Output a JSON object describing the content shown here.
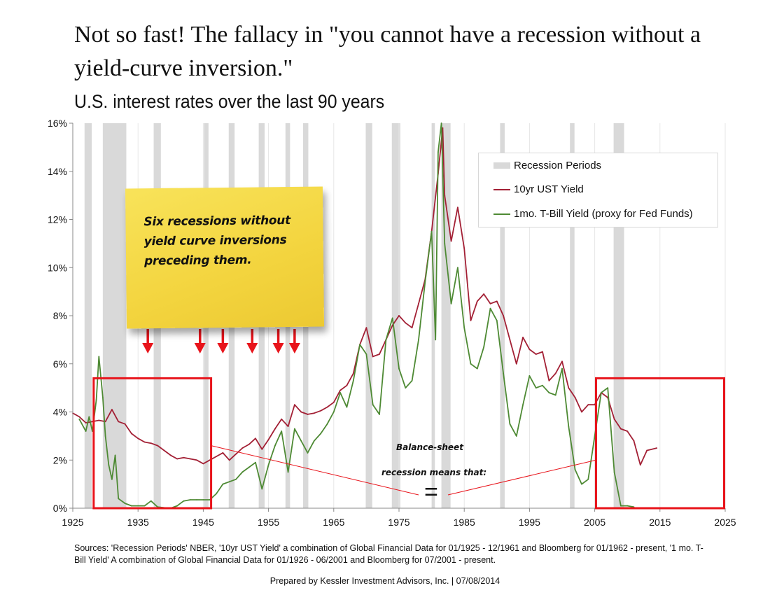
{
  "headline": "Not so fast!  The fallacy in \"you cannot have a recession without a yield-curve inversion.\"",
  "chart_data": {
    "type": "line",
    "title": "U.S. interest rates over the last 90 years",
    "xlim": [
      1925,
      2025
    ],
    "ylim": [
      0,
      16
    ],
    "x_ticks": [
      "1925",
      "1935",
      "1945",
      "1955",
      "1965",
      "1975",
      "1985",
      "1995",
      "2005",
      "2015",
      "2025"
    ],
    "x_tick_values": [
      1925,
      1935,
      1945,
      1955,
      1965,
      1975,
      1985,
      1995,
      2005,
      2015,
      2025
    ],
    "y_ticks": [
      "0%",
      "2%",
      "4%",
      "6%",
      "8%",
      "10%",
      "12%",
      "14%",
      "16%"
    ],
    "y_tick_values": [
      0,
      2,
      4,
      6,
      8,
      10,
      12,
      14,
      16
    ],
    "grid": "vertical",
    "legend_position": "top-right",
    "legend": [
      {
        "label": "Recession Periods",
        "kind": "band",
        "color": "#d9d9d9"
      },
      {
        "label": "10yr UST Yield",
        "kind": "line",
        "color": "#a32035"
      },
      {
        "label": "1mo. T-Bill Yield (proxy for Fed Funds)",
        "kind": "line",
        "color": "#4e8a34"
      }
    ],
    "recessions": [
      [
        1926.8,
        1927.9
      ],
      [
        1929.6,
        1933.2
      ],
      [
        1937.4,
        1938.5
      ],
      [
        1945.1,
        1945.8
      ],
      [
        1948.9,
        1949.8
      ],
      [
        1953.5,
        1954.4
      ],
      [
        1957.6,
        1958.3
      ],
      [
        1960.3,
        1961.1
      ],
      [
        1969.9,
        1970.9
      ],
      [
        1973.9,
        1975.2
      ],
      [
        1980.0,
        1980.5
      ],
      [
        1981.5,
        1982.9
      ],
      [
        1990.5,
        1991.2
      ],
      [
        2001.2,
        2001.9
      ],
      [
        2007.9,
        2009.5
      ]
    ],
    "series": [
      {
        "name": "10yr UST Yield",
        "color": "#a32035",
        "x": [
          1925,
          1926,
          1927,
          1928,
          1929,
          1930,
          1931,
          1932,
          1933,
          1934,
          1935,
          1936,
          1937,
          1938,
          1939,
          1940,
          1941,
          1942,
          1943,
          1944,
          1945,
          1946,
          1947,
          1948,
          1949,
          1950,
          1951,
          1952,
          1953,
          1954,
          1955,
          1956,
          1957,
          1958,
          1959,
          1960,
          1961,
          1962,
          1963,
          1964,
          1965,
          1966,
          1967,
          1968,
          1969,
          1970,
          1971,
          1972,
          1973,
          1974,
          1975,
          1976,
          1977,
          1978,
          1979,
          1980,
          1981,
          1981.7,
          1982,
          1983,
          1984,
          1985,
          1986,
          1987,
          1988,
          1989,
          1990,
          1991,
          1992,
          1993,
          1994,
          1995,
          1996,
          1997,
          1998,
          1999,
          2000,
          2001,
          2002,
          2003,
          2004,
          2005,
          2006,
          2007,
          2008,
          2009,
          2010,
          2011,
          2012,
          2013,
          2014.5
        ],
        "values": [
          3.95,
          3.8,
          3.55,
          3.6,
          3.65,
          3.6,
          4.1,
          3.6,
          3.5,
          3.1,
          2.9,
          2.75,
          2.7,
          2.6,
          2.4,
          2.2,
          2.05,
          2.1,
          2.05,
          2.0,
          1.85,
          2.0,
          2.15,
          2.3,
          2.0,
          2.25,
          2.5,
          2.65,
          2.9,
          2.45,
          2.85,
          3.3,
          3.7,
          3.4,
          4.3,
          4.0,
          3.9,
          3.95,
          4.05,
          4.2,
          4.4,
          4.9,
          5.1,
          5.6,
          6.8,
          7.5,
          6.3,
          6.4,
          7.0,
          7.6,
          8.0,
          7.7,
          7.5,
          8.5,
          9.5,
          11.5,
          13.9,
          15.8,
          13.0,
          11.1,
          12.5,
          10.8,
          7.8,
          8.6,
          8.9,
          8.5,
          8.6,
          8.0,
          7.0,
          6.0,
          7.1,
          6.6,
          6.4,
          6.5,
          5.3,
          5.6,
          6.1,
          5.0,
          4.6,
          4.0,
          4.3,
          4.3,
          4.8,
          4.6,
          3.7,
          3.3,
          3.2,
          2.8,
          1.8,
          2.4,
          2.5
        ]
      },
      {
        "name": "1mo. T-Bill Yield (proxy for Fed Funds)",
        "color": "#4e8a34",
        "x": [
          1926,
          1927,
          1927.5,
          1928,
          1928.6,
          1929,
          1929.6,
          1930,
          1930.5,
          1931,
          1931.5,
          1932,
          1933,
          1934,
          1935,
          1936,
          1937,
          1938,
          1939,
          1940,
          1941,
          1942,
          1943,
          1944,
          1945,
          1946,
          1947,
          1948,
          1949,
          1950,
          1951,
          1952,
          1953,
          1954,
          1955,
          1956,
          1957,
          1958,
          1959,
          1960,
          1961,
          1962,
          1963,
          1964,
          1965,
          1966,
          1967,
          1968,
          1969,
          1970,
          1971,
          1972,
          1973,
          1974,
          1975,
          1976,
          1977,
          1978,
          1979,
          1980,
          1980.6,
          1981,
          1981.5,
          1982,
          1983,
          1984,
          1985,
          1986,
          1987,
          1988,
          1989,
          1990,
          1991,
          1992,
          1993,
          1994,
          1995,
          1996,
          1997,
          1998,
          1999,
          2000,
          2001,
          2002,
          2003,
          2004,
          2005,
          2006,
          2007,
          2008,
          2009,
          2010,
          2011
        ],
        "values": [
          3.7,
          3.2,
          3.8,
          3.2,
          4.5,
          6.3,
          4.6,
          3.0,
          1.8,
          1.2,
          2.2,
          0.4,
          0.2,
          0.1,
          0.1,
          0.1,
          0.3,
          0.05,
          0.02,
          0.0,
          0.1,
          0.3,
          0.35,
          0.35,
          0.35,
          0.35,
          0.6,
          1.0,
          1.1,
          1.2,
          1.5,
          1.7,
          1.9,
          0.8,
          1.8,
          2.6,
          3.2,
          1.5,
          3.3,
          2.8,
          2.3,
          2.8,
          3.1,
          3.5,
          4.0,
          4.8,
          4.2,
          5.3,
          6.8,
          6.4,
          4.3,
          3.9,
          7.0,
          7.9,
          5.8,
          5.0,
          5.3,
          7.0,
          9.4,
          11.5,
          7.0,
          14.8,
          16.0,
          11.0,
          8.5,
          10.0,
          7.5,
          6.0,
          5.8,
          6.7,
          8.3,
          7.8,
          5.6,
          3.5,
          3.0,
          4.3,
          5.5,
          5.0,
          5.1,
          4.8,
          4.7,
          5.8,
          3.4,
          1.6,
          1.0,
          1.2,
          3.0,
          4.8,
          5.0,
          1.5,
          0.1,
          0.1,
          0.05
        ]
      }
    ],
    "annotations": {
      "sticky_note": "Six recessions without yield curve inversions preceding them.",
      "arrow_years": [
        1936.5,
        1944.5,
        1948.0,
        1952.5,
        1956.5,
        1959.0
      ],
      "left_box": {
        "x": [
          1928.2,
          1946.2
        ],
        "y": [
          0,
          5.4
        ]
      },
      "right_box": {
        "x": [
          2005.2,
          2025
        ],
        "y": [
          0,
          5.4
        ]
      },
      "balance_sheet_line1": "Balance-sheet",
      "balance_sheet_line2": "recession means that:",
      "equals_sign": "="
    }
  },
  "sources": "Sources: 'Recession Periods' NBER, '10yr UST Yield' a combination of Global Financial Data for 01/1925 - 12/1961  and  Bloomberg for 01/1962 - present, '1 mo. T-Bill Yield' A combination of Global Financial Data for 01/1926 - 06/2001 and Bloomberg for 07/2001 - present.",
  "prepared_by": "Prepared by Kessler Investment Advisors, Inc. | 07/08/2014"
}
